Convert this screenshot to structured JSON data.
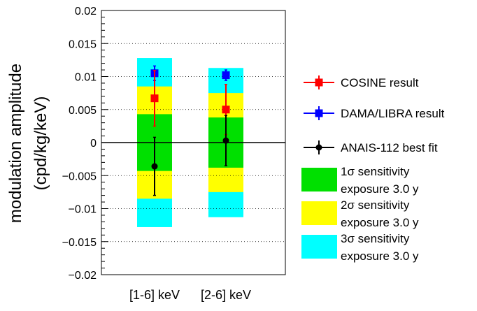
{
  "chart_data": {
    "type": "scatter",
    "title": "",
    "xlabel": "",
    "ylabel": "modulation amplitude",
    "ylabel_units": "(cpd/kg/keV)",
    "ylim": [
      -0.02,
      0.02
    ],
    "yticks": [
      0.02,
      0.015,
      0.01,
      0.005,
      0,
      -0.005,
      -0.01,
      -0.015,
      -0.02
    ],
    "ytick_labels": [
      "0.02",
      "0.015",
      "0.01",
      "0.005",
      "0",
      "−0.005",
      "−0.01",
      "−0.015",
      "−0.02"
    ],
    "grid": "dotted-horizontal",
    "categories": [
      "[1-6] keV",
      "[2-6] keV"
    ],
    "sensitivity_bands": [
      {
        "name": "3σ sensitivity",
        "color": "#00ffff",
        "half_widths": [
          0.0128,
          0.0113
        ]
      },
      {
        "name": "2σ sensitivity",
        "color": "#ffff00",
        "half_widths": [
          0.0085,
          0.0075
        ]
      },
      {
        "name": "1σ sensitivity",
        "color": "#00e000",
        "half_widths": [
          0.0043,
          0.0038
        ]
      }
    ],
    "series": [
      {
        "name": "DAMA/LIBRA result",
        "color": "#0000ff",
        "marker": "square",
        "values": [
          0.0105,
          0.0102
        ],
        "err_low": [
          0.0011,
          0.0008
        ],
        "err_high": [
          0.0011,
          0.0008
        ]
      },
      {
        "name": "COSINE result",
        "color": "#ff0000",
        "marker": "square",
        "values": [
          0.0067,
          0.005
        ],
        "err_low": [
          0.0042,
          0.0038
        ],
        "err_high": [
          0.0042,
          0.0038
        ]
      },
      {
        "name": "ANAIS-112 best fit",
        "color": "#000000",
        "marker": "circle",
        "values": [
          -0.0036,
          0.0003
        ],
        "err_low": [
          0.0044,
          0.0038
        ],
        "err_high": [
          0.0044,
          0.0038
        ]
      }
    ],
    "legend": {
      "position": "right",
      "entries": [
        {
          "type": "line-square",
          "color": "#ff0000",
          "lines": [
            "COSINE result"
          ]
        },
        {
          "type": "line-square",
          "color": "#0000ff",
          "lines": [
            "DAMA/LIBRA result"
          ]
        },
        {
          "type": "line-circle",
          "color": "#000000",
          "lines": [
            "ANAIS-112 best fit"
          ]
        },
        {
          "type": "box",
          "color": "#00e000",
          "lines": [
            "1σ sensitivity",
            "exposure 3.0 y"
          ]
        },
        {
          "type": "box",
          "color": "#ffff00",
          "lines": [
            "2σ sensitivity",
            "exposure 3.0 y"
          ]
        },
        {
          "type": "box",
          "color": "#00ffff",
          "lines": [
            "3σ sensitivity",
            "exposure 3.0 y"
          ]
        }
      ]
    }
  }
}
